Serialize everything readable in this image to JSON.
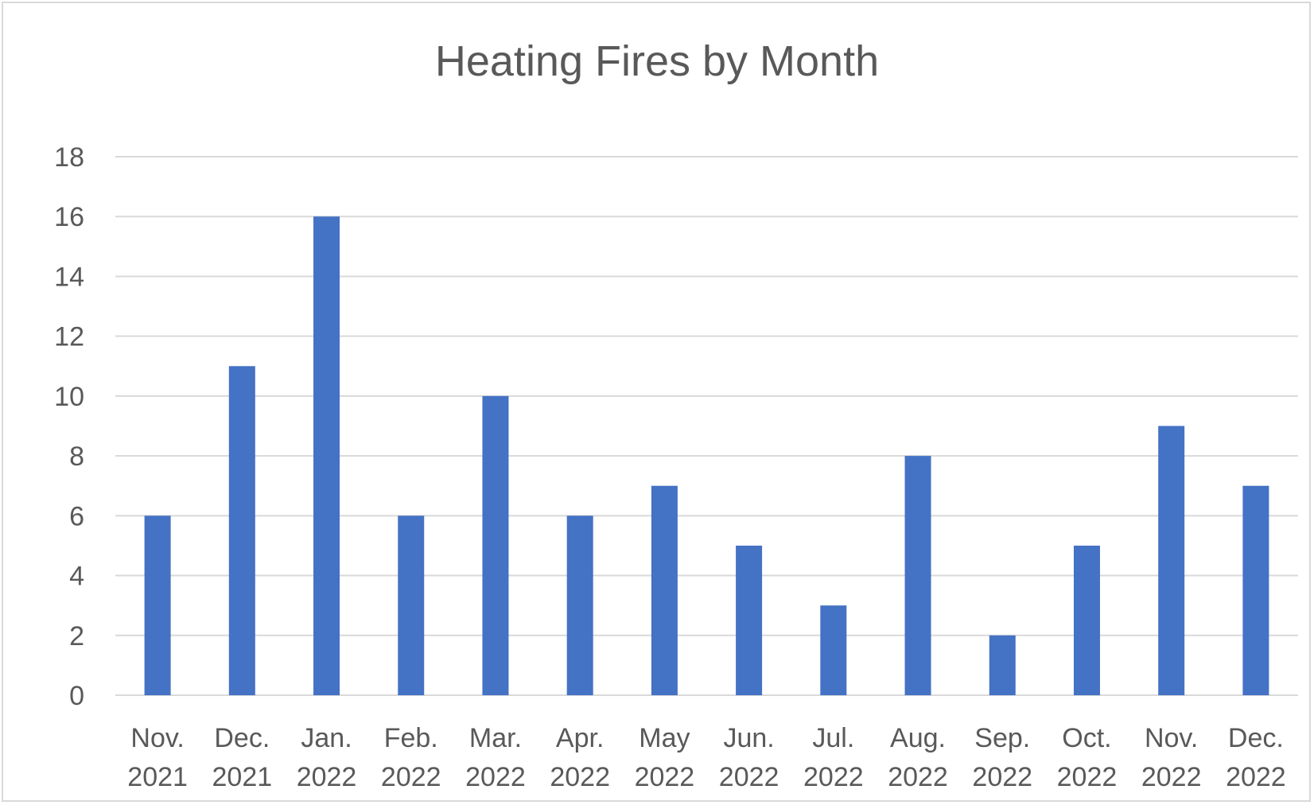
{
  "chart_data": {
    "type": "bar",
    "title": "Heating Fires by Month",
    "xlabel": "",
    "ylabel": "",
    "categories": [
      [
        "Nov.",
        "2021"
      ],
      [
        "Dec.",
        "2021"
      ],
      [
        "Jan.",
        "2022"
      ],
      [
        "Feb.",
        "2022"
      ],
      [
        "Mar.",
        "2022"
      ],
      [
        "Apr.",
        "2022"
      ],
      [
        "May",
        "2022"
      ],
      [
        "Jun.",
        "2022"
      ],
      [
        "Jul.",
        "2022"
      ],
      [
        "Aug.",
        "2022"
      ],
      [
        "Sep.",
        "2022"
      ],
      [
        "Oct.",
        "2022"
      ],
      [
        "Nov.",
        "2022"
      ],
      [
        "Dec.",
        "2022"
      ]
    ],
    "values": [
      6,
      11,
      16,
      6,
      10,
      6,
      7,
      5,
      3,
      8,
      2,
      5,
      9,
      7
    ],
    "ylim": [
      0,
      18
    ],
    "yticks": [
      0,
      2,
      4,
      6,
      8,
      10,
      12,
      14,
      16,
      18
    ],
    "grid": true,
    "legend": "none",
    "colors": {
      "bar": "#4472c4",
      "grid": "#d9d9d9",
      "text": "#595959",
      "border": "#d9d9d9"
    }
  }
}
